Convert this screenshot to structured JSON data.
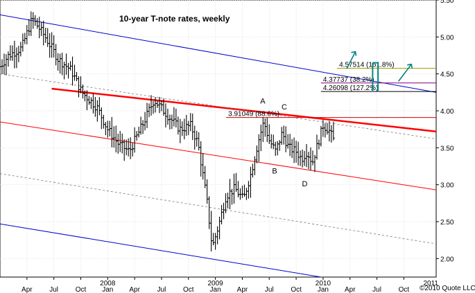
{
  "chart_data": {
    "type": "bar",
    "subtype": "ohlc-weekly",
    "title": "10-year T-note rates, weekly",
    "y_axis": {
      "side": "right",
      "ticks": [
        "5.50",
        "5.00",
        "4.50",
        "4.00",
        "3.50",
        "3.00",
        "2.50",
        "2.00"
      ],
      "range": [
        1.75,
        5.5
      ]
    },
    "x_axis": {
      "ticks": [
        {
          "label": "Apr",
          "t": 2007.25
        },
        {
          "label": "Jul",
          "t": 2007.5
        },
        {
          "label": "Oct",
          "t": 2007.75
        },
        {
          "label": "2008",
          "t": 2008.0,
          "year": true
        },
        {
          "label": "Jan",
          "t": 2008.0
        },
        {
          "label": "Apr",
          "t": 2008.25
        },
        {
          "label": "Jul",
          "t": 2008.5
        },
        {
          "label": "Oct",
          "t": 2008.75
        },
        {
          "label": "2009",
          "t": 2009.0,
          "year": true
        },
        {
          "label": "Jan",
          "t": 2009.0
        },
        {
          "label": "Apr",
          "t": 2009.25
        },
        {
          "label": "Jul",
          "t": 2009.5
        },
        {
          "label": "Oct",
          "t": 2009.75
        },
        {
          "label": "2010",
          "t": 2010.0,
          "year": true
        },
        {
          "label": "Jan",
          "t": 2010.0
        },
        {
          "label": "Apr",
          "t": 2010.25
        },
        {
          "label": "Jul",
          "t": 2010.5
        },
        {
          "label": "Oct",
          "t": 2010.75
        },
        {
          "label": "2011",
          "t": 2011.0,
          "year": true
        }
      ],
      "range": [
        2007.0,
        2011.05
      ]
    },
    "price_anchors": [
      {
        "t": 2007.0,
        "v": 4.6
      },
      {
        "t": 2007.08,
        "v": 4.75
      },
      {
        "t": 2007.2,
        "v": 4.85
      },
      {
        "t": 2007.3,
        "v": 5.25
      },
      {
        "t": 2007.42,
        "v": 5.0
      },
      {
        "t": 2007.54,
        "v": 4.7
      },
      {
        "t": 2007.66,
        "v": 4.55
      },
      {
        "t": 2007.76,
        "v": 4.25
      },
      {
        "t": 2007.9,
        "v": 4.05
      },
      {
        "t": 2008.0,
        "v": 3.75
      },
      {
        "t": 2008.1,
        "v": 3.55
      },
      {
        "t": 2008.2,
        "v": 3.45
      },
      {
        "t": 2008.32,
        "v": 3.8
      },
      {
        "t": 2008.43,
        "v": 4.15
      },
      {
        "t": 2008.55,
        "v": 3.95
      },
      {
        "t": 2008.67,
        "v": 3.75
      },
      {
        "t": 2008.77,
        "v": 3.8
      },
      {
        "t": 2008.84,
        "v": 3.55
      },
      {
        "t": 2008.92,
        "v": 2.8
      },
      {
        "t": 2008.97,
        "v": 2.15
      },
      {
        "t": 2009.03,
        "v": 2.45
      },
      {
        "t": 2009.1,
        "v": 2.85
      },
      {
        "t": 2009.18,
        "v": 2.95
      },
      {
        "t": 2009.26,
        "v": 2.8
      },
      {
        "t": 2009.33,
        "v": 3.15
      },
      {
        "t": 2009.4,
        "v": 3.6
      },
      {
        "t": 2009.45,
        "v": 3.85
      },
      {
        "t": 2009.5,
        "v": 3.6
      },
      {
        "t": 2009.56,
        "v": 3.45
      },
      {
        "t": 2009.62,
        "v": 3.7
      },
      {
        "t": 2009.68,
        "v": 3.5
      },
      {
        "t": 2009.75,
        "v": 3.45
      },
      {
        "t": 2009.8,
        "v": 3.35
      },
      {
        "t": 2009.85,
        "v": 3.45
      },
      {
        "t": 2009.9,
        "v": 3.3
      },
      {
        "t": 2009.95,
        "v": 3.55
      },
      {
        "t": 2010.0,
        "v": 3.8
      },
      {
        "t": 2010.05,
        "v": 3.75
      },
      {
        "t": 2010.1,
        "v": 3.6
      }
    ],
    "channels": [
      {
        "name": "upper-blue",
        "color": "#0000cc",
        "width": 1,
        "from": {
          "t": 2007.0,
          "v": 5.3
        },
        "to": {
          "t": 2011.05,
          "v": 4.25
        }
      },
      {
        "name": "lower-blue",
        "color": "#0000cc",
        "width": 1,
        "from": {
          "t": 2007.0,
          "v": 2.47
        },
        "to": {
          "t": 2009.98,
          "v": 1.75
        }
      },
      {
        "name": "main-red",
        "color": "#ff0000",
        "width": 2.5,
        "from": {
          "t": 2007.48,
          "v": 4.3
        },
        "to": {
          "t": 2011.05,
          "v": 3.72
        }
      },
      {
        "name": "lower-red",
        "color": "#ff0000",
        "width": 1,
        "from": {
          "t": 2007.0,
          "v": 3.85
        },
        "to": {
          "t": 2011.05,
          "v": 2.93
        }
      },
      {
        "name": "upper-dash",
        "color": "#777777",
        "width": 0.8,
        "dashed": true,
        "from": {
          "t": 2007.0,
          "v": 4.5
        },
        "to": {
          "t": 2011.05,
          "v": 3.62
        }
      },
      {
        "name": "lower-dash",
        "color": "#777777",
        "width": 0.8,
        "dashed": true,
        "from": {
          "t": 2007.0,
          "v": 3.15
        },
        "to": {
          "t": 2011.05,
          "v": 2.2
        }
      }
    ],
    "fib_levels": [
      {
        "label": "4.57514 (161.8%)",
        "value": 4.575,
        "color": "#999900",
        "from_t": 2010.13
      },
      {
        "label": "4.37737 (38.2%)",
        "value": 4.377,
        "color": "#800080",
        "from_t": 2009.98
      },
      {
        "label": "4.26098 (127.2%)",
        "value": 4.261,
        "color": "#000000",
        "from_t": 2009.98
      },
      {
        "label": "3.91049 (88.6%)",
        "value": 3.91,
        "color": "#cc0000",
        "from_t": 2009.1
      }
    ],
    "target_band": {
      "color": "#008888",
      "t1": 2010.46,
      "t2": 2010.51,
      "from_v": 4.26,
      "to_v": 4.65
    },
    "arrows": [
      {
        "color": "#008080",
        "from": {
          "t": 2010.22,
          "v": 4.57
        },
        "to": {
          "t": 2010.3,
          "v": 4.8
        }
      },
      {
        "color": "#008080",
        "from": {
          "t": 2010.7,
          "v": 4.4
        },
        "to": {
          "t": 2010.82,
          "v": 4.63
        }
      }
    ],
    "wave_labels": [
      {
        "label": "A",
        "t": 2009.44,
        "v": 4.1
      },
      {
        "label": "B",
        "t": 2009.55,
        "v": 3.15
      },
      {
        "label": "C",
        "t": 2009.64,
        "v": 4.02
      },
      {
        "label": "D",
        "t": 2009.83,
        "v": 2.98
      }
    ],
    "copyright": "©2010 Quote LLC"
  }
}
